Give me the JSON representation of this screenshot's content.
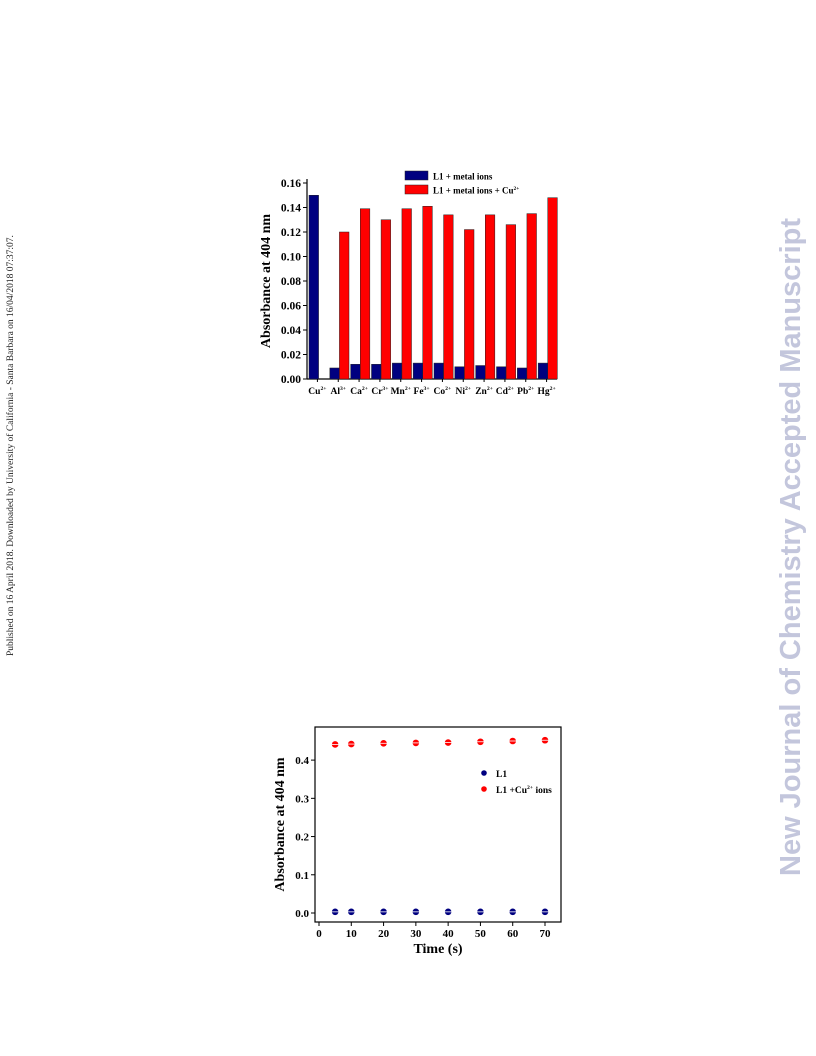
{
  "side_note": "Published on 16 April 2018. Downloaded by University of California - Santa Barbara on 16/04/2018 07:37:07.",
  "watermark": "New Journal of Chemistry Accepted Manuscript",
  "chart_data": [
    {
      "type": "bar",
      "ylabel": "Absorbance at 404 nm",
      "ylim": [
        0,
        0.16
      ],
      "yticks": [
        "0.00",
        "0.02",
        "0.04",
        "0.06",
        "0.08",
        "0.10",
        "0.12",
        "0.14",
        "0.16"
      ],
      "categories": [
        {
          "base": "Cu",
          "sup": "2+"
        },
        {
          "base": "Al",
          "sup": "3+"
        },
        {
          "base": "Ca",
          "sup": "2+"
        },
        {
          "base": "Cr",
          "sup": "3+"
        },
        {
          "base": "Mn",
          "sup": "2+"
        },
        {
          "base": "Fe",
          "sup": "3+"
        },
        {
          "base": "Co",
          "sup": "2+"
        },
        {
          "base": "Ni",
          "sup": "2+"
        },
        {
          "base": "Zn",
          "sup": "2+"
        },
        {
          "base": "Cd",
          "sup": "2+"
        },
        {
          "base": "Pb",
          "sup": "2+"
        },
        {
          "base": "Hg",
          "sup": "2+"
        }
      ],
      "legend_placement": "top-right",
      "series": [
        {
          "name": "L1 + metal ions",
          "color": "#000080",
          "values": [
            0.15,
            0.009,
            0.012,
            0.012,
            0.013,
            0.013,
            0.013,
            0.01,
            0.011,
            0.01,
            0.009,
            0.013
          ]
        },
        {
          "name": "L1 + metal ions + Cu",
          "name_sup": "2+",
          "color": "#ff0000",
          "values": [
            null,
            0.12,
            0.139,
            0.13,
            0.139,
            0.141,
            0.134,
            0.122,
            0.134,
            0.126,
            0.135,
            0.148
          ]
        }
      ]
    },
    {
      "type": "scatter",
      "xlabel": "Time (s)",
      "ylabel": "Absorbance at 404 nm",
      "xlim": [
        0,
        70
      ],
      "ylim": [
        0,
        0.45
      ],
      "xticks": [
        "0",
        "10",
        "20",
        "30",
        "40",
        "50",
        "60",
        "70"
      ],
      "yticks": [
        "0.0",
        "0.1",
        "0.2",
        "0.3",
        "0.4"
      ],
      "legend_placement": "right",
      "series": [
        {
          "name": "L1",
          "color": "#000080",
          "x": [
            5,
            10,
            20,
            30,
            40,
            50,
            60,
            70
          ],
          "y": [
            0.003,
            0.003,
            0.003,
            0.003,
            0.003,
            0.003,
            0.003,
            0.003
          ]
        },
        {
          "name": "L1 +Cu",
          "name_sup": "2+",
          "name_suffix": " ions",
          "color": "#ff0000",
          "x": [
            5,
            10,
            20,
            30,
            40,
            50,
            60,
            70
          ],
          "y": [
            0.441,
            0.442,
            0.444,
            0.445,
            0.446,
            0.448,
            0.45,
            0.452
          ]
        }
      ]
    }
  ]
}
